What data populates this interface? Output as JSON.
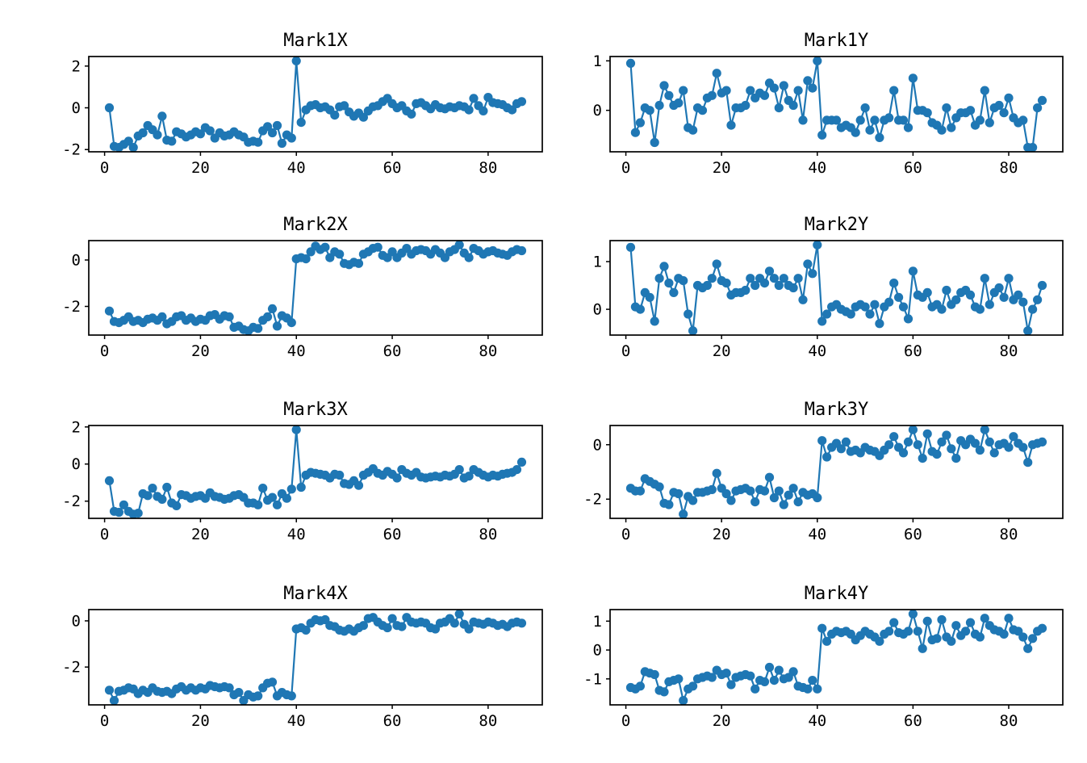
{
  "colors": {
    "line": "#1f77b4",
    "axis": "#000000",
    "background": "#ffffff",
    "tick_label": "#000000"
  },
  "chart_data": [
    {
      "type": "line",
      "title": "Mark1X",
      "x_start": 1,
      "x_step": 1,
      "xticks": [
        0,
        20,
        40,
        60,
        80
      ],
      "yticks": [
        -2,
        0,
        2
      ],
      "xlim": [
        -3.3,
        91.3
      ],
      "grid": false,
      "legend": null,
      "values": [
        0.0,
        -1.85,
        -1.9,
        -1.75,
        -1.6,
        -1.9,
        -1.35,
        -1.2,
        -0.85,
        -1.05,
        -1.3,
        -0.4,
        -1.55,
        -1.6,
        -1.15,
        -1.25,
        -1.4,
        -1.3,
        -1.15,
        -1.25,
        -0.95,
        -1.1,
        -1.45,
        -1.2,
        -1.35,
        -1.3,
        -1.15,
        -1.3,
        -1.4,
        -1.65,
        -1.6,
        -1.65,
        -1.1,
        -0.9,
        -1.2,
        -0.85,
        -1.7,
        -1.3,
        -1.45,
        2.25,
        -0.7,
        -0.1,
        0.1,
        0.15,
        0.0,
        0.05,
        -0.1,
        -0.35,
        0.05,
        0.1,
        -0.2,
        -0.4,
        -0.25,
        -0.45,
        -0.15,
        0.05,
        0.1,
        0.3,
        0.45,
        0.2,
        0.0,
        0.1,
        -0.15,
        -0.3,
        0.2,
        0.25,
        0.1,
        -0.05,
        0.15,
        0.0,
        -0.05,
        0.05,
        0.0,
        0.1,
        0.05,
        -0.1,
        0.45,
        0.1,
        -0.15,
        0.5,
        0.25,
        0.2,
        0.15,
        0.0,
        -0.1,
        0.2,
        0.3
      ]
    },
    {
      "type": "line",
      "title": "Mark1Y",
      "x_start": 1,
      "x_step": 1,
      "xticks": [
        0,
        20,
        40,
        60,
        80
      ],
      "yticks": [
        0,
        1
      ],
      "xlim": [
        -3.3,
        91.3
      ],
      "grid": false,
      "legend": null,
      "values": [
        0.95,
        -0.45,
        -0.25,
        0.05,
        0.0,
        -0.65,
        0.1,
        0.5,
        0.3,
        0.1,
        0.15,
        0.4,
        -0.35,
        -0.4,
        0.05,
        0.0,
        0.25,
        0.3,
        0.75,
        0.35,
        0.4,
        -0.3,
        0.05,
        0.05,
        0.1,
        0.4,
        0.25,
        0.35,
        0.3,
        0.55,
        0.45,
        0.05,
        0.5,
        0.2,
        0.1,
        0.4,
        -0.2,
        0.6,
        0.45,
        1.0,
        -0.5,
        -0.2,
        -0.2,
        -0.2,
        -0.35,
        -0.3,
        -0.35,
        -0.45,
        -0.2,
        0.05,
        -0.4,
        -0.2,
        -0.55,
        -0.2,
        -0.15,
        0.4,
        -0.2,
        -0.2,
        -0.35,
        0.65,
        0.0,
        0.0,
        -0.05,
        -0.25,
        -0.3,
        -0.4,
        0.05,
        -0.35,
        -0.15,
        -0.05,
        -0.05,
        0.0,
        -0.3,
        -0.2,
        0.4,
        -0.25,
        0.05,
        0.1,
        -0.05,
        0.25,
        -0.15,
        -0.25,
        -0.2,
        -0.75,
        -0.75,
        0.05,
        0.2
      ]
    },
    {
      "type": "line",
      "title": "Mark2X",
      "x_start": 1,
      "x_step": 1,
      "xticks": [
        0,
        20,
        40,
        60,
        80
      ],
      "yticks": [
        -2,
        0
      ],
      "xlim": [
        -3.3,
        91.3
      ],
      "grid": false,
      "legend": null,
      "values": [
        -2.2,
        -2.65,
        -2.7,
        -2.6,
        -2.45,
        -2.65,
        -2.6,
        -2.7,
        -2.55,
        -2.5,
        -2.6,
        -2.45,
        -2.75,
        -2.65,
        -2.45,
        -2.4,
        -2.6,
        -2.5,
        -2.65,
        -2.55,
        -2.6,
        -2.4,
        -2.35,
        -2.55,
        -2.4,
        -2.45,
        -2.9,
        -2.85,
        -3.0,
        -3.05,
        -2.9,
        -2.95,
        -2.6,
        -2.45,
        -2.1,
        -2.85,
        -2.4,
        -2.5,
        -2.7,
        0.05,
        0.1,
        0.05,
        0.35,
        0.6,
        0.45,
        0.55,
        0.1,
        0.35,
        0.25,
        -0.15,
        -0.2,
        -0.1,
        -0.15,
        0.25,
        0.35,
        0.5,
        0.55,
        0.2,
        0.1,
        0.35,
        0.1,
        0.3,
        0.5,
        0.25,
        0.4,
        0.45,
        0.4,
        0.25,
        0.45,
        0.3,
        0.1,
        0.35,
        0.45,
        0.65,
        0.3,
        0.1,
        0.5,
        0.4,
        0.25,
        0.35,
        0.4,
        0.3,
        0.25,
        0.2,
        0.35,
        0.45,
        0.4
      ]
    },
    {
      "type": "line",
      "title": "Mark2Y",
      "x_start": 1,
      "x_step": 1,
      "xticks": [
        0,
        20,
        40,
        60,
        80
      ],
      "yticks": [
        0,
        1
      ],
      "xlim": [
        -3.3,
        91.3
      ],
      "grid": false,
      "legend": null,
      "values": [
        1.3,
        0.05,
        0.0,
        0.35,
        0.25,
        -0.25,
        0.65,
        0.9,
        0.55,
        0.35,
        0.65,
        0.6,
        -0.1,
        -0.45,
        0.5,
        0.45,
        0.5,
        0.65,
        0.95,
        0.6,
        0.55,
        0.3,
        0.35,
        0.35,
        0.4,
        0.65,
        0.5,
        0.65,
        0.55,
        0.8,
        0.65,
        0.5,
        0.65,
        0.5,
        0.45,
        0.65,
        0.2,
        0.95,
        0.75,
        1.35,
        -0.25,
        -0.1,
        0.05,
        0.1,
        0.0,
        -0.05,
        -0.1,
        0.05,
        0.1,
        0.05,
        -0.1,
        0.1,
        -0.3,
        0.05,
        0.15,
        0.55,
        0.25,
        0.05,
        -0.2,
        0.8,
        0.3,
        0.25,
        0.35,
        0.05,
        0.1,
        0.0,
        0.4,
        0.1,
        0.2,
        0.35,
        0.4,
        0.3,
        0.05,
        0.0,
        0.65,
        0.1,
        0.35,
        0.45,
        0.25,
        0.65,
        0.2,
        0.3,
        0.15,
        -0.45,
        0.0,
        0.2,
        0.5
      ]
    },
    {
      "type": "line",
      "title": "Mark3X",
      "x_start": 1,
      "x_step": 1,
      "xticks": [
        0,
        20,
        40,
        60,
        80
      ],
      "yticks": [
        -2,
        0,
        2
      ],
      "xlim": [
        -3.3,
        91.3
      ],
      "grid": false,
      "legend": null,
      "values": [
        -0.9,
        -2.55,
        -2.6,
        -2.2,
        -2.55,
        -2.7,
        -2.65,
        -1.6,
        -1.7,
        -1.3,
        -1.75,
        -1.9,
        -1.25,
        -2.1,
        -2.25,
        -1.65,
        -1.7,
        -1.85,
        -1.75,
        -1.7,
        -1.85,
        -1.55,
        -1.75,
        -1.8,
        -1.9,
        -1.85,
        -1.7,
        -1.65,
        -1.8,
        -2.1,
        -2.1,
        -2.2,
        -1.3,
        -1.95,
        -1.8,
        -2.2,
        -1.6,
        -1.85,
        -1.35,
        1.85,
        -1.25,
        -0.6,
        -0.45,
        -0.5,
        -0.55,
        -0.6,
        -0.75,
        -0.55,
        -0.6,
        -1.05,
        -1.1,
        -0.9,
        -1.15,
        -0.6,
        -0.45,
        -0.25,
        -0.5,
        -0.6,
        -0.4,
        -0.55,
        -0.75,
        -0.3,
        -0.5,
        -0.6,
        -0.45,
        -0.7,
        -0.75,
        -0.7,
        -0.65,
        -0.7,
        -0.6,
        -0.65,
        -0.55,
        -0.3,
        -0.75,
        -0.65,
        -0.3,
        -0.45,
        -0.6,
        -0.7,
        -0.6,
        -0.65,
        -0.55,
        -0.5,
        -0.45,
        -0.3,
        0.1
      ]
    },
    {
      "type": "line",
      "title": "Mark3Y",
      "x_start": 1,
      "x_step": 1,
      "xticks": [
        0,
        20,
        40,
        60,
        80
      ],
      "yticks": [
        -2,
        0
      ],
      "xlim": [
        -3.3,
        91.3
      ],
      "grid": false,
      "legend": null,
      "values": [
        -1.6,
        -1.7,
        -1.7,
        -1.25,
        -1.35,
        -1.45,
        -1.55,
        -2.15,
        -2.2,
        -1.75,
        -1.8,
        -2.55,
        -1.9,
        -2.05,
        -1.75,
        -1.75,
        -1.7,
        -1.65,
        -1.05,
        -1.6,
        -1.8,
        -2.05,
        -1.7,
        -1.65,
        -1.6,
        -1.7,
        -2.1,
        -1.65,
        -1.7,
        -1.2,
        -1.95,
        -1.7,
        -2.2,
        -1.85,
        -1.6,
        -2.1,
        -1.75,
        -1.85,
        -1.8,
        -1.95,
        0.15,
        -0.45,
        -0.1,
        0.05,
        -0.15,
        0.1,
        -0.25,
        -0.2,
        -0.3,
        -0.1,
        -0.2,
        -0.25,
        -0.4,
        -0.2,
        0.0,
        0.3,
        -0.1,
        -0.3,
        0.1,
        0.55,
        0.0,
        -0.5,
        0.4,
        -0.25,
        -0.35,
        0.1,
        0.35,
        -0.15,
        -0.5,
        0.15,
        0.0,
        0.2,
        0.05,
        -0.2,
        0.55,
        0.1,
        -0.3,
        0.0,
        0.05,
        -0.1,
        0.3,
        0.05,
        -0.1,
        -0.65,
        0.0,
        0.05,
        0.1
      ]
    },
    {
      "type": "line",
      "title": "Mark4X",
      "x_start": 1,
      "x_step": 1,
      "xticks": [
        0,
        20,
        40,
        60,
        80
      ],
      "yticks": [
        -2,
        0
      ],
      "xlim": [
        -3.3,
        91.3
      ],
      "grid": false,
      "legend": null,
      "values": [
        -3.0,
        -3.45,
        -3.05,
        -3.0,
        -2.9,
        -2.95,
        -3.15,
        -3.0,
        -3.1,
        -2.9,
        -3.05,
        -3.1,
        -3.05,
        -3.15,
        -2.95,
        -2.85,
        -3.0,
        -2.9,
        -3.0,
        -2.9,
        -2.95,
        -2.8,
        -2.85,
        -2.9,
        -2.85,
        -2.9,
        -3.2,
        -3.1,
        -3.45,
        -3.2,
        -3.3,
        -3.25,
        -2.9,
        -2.7,
        -2.65,
        -3.25,
        -3.1,
        -3.2,
        -3.25,
        -0.35,
        -0.3,
        -0.4,
        -0.1,
        0.05,
        0.0,
        0.05,
        -0.2,
        -0.25,
        -0.4,
        -0.45,
        -0.35,
        -0.45,
        -0.3,
        -0.2,
        0.1,
        0.15,
        -0.05,
        -0.2,
        -0.3,
        0.1,
        -0.2,
        -0.25,
        0.15,
        -0.05,
        -0.1,
        -0.05,
        -0.1,
        -0.3,
        -0.35,
        -0.1,
        -0.05,
        0.1,
        -0.1,
        0.3,
        -0.15,
        -0.35,
        -0.05,
        -0.1,
        -0.15,
        -0.05,
        -0.1,
        -0.2,
        -0.15,
        -0.25,
        -0.1,
        -0.05,
        -0.1
      ]
    },
    {
      "type": "line",
      "title": "Mark4Y",
      "x_start": 1,
      "x_step": 1,
      "xticks": [
        0,
        20,
        40,
        60,
        80
      ],
      "yticks": [
        -1,
        0,
        1
      ],
      "xlim": [
        -3.3,
        91.3
      ],
      "grid": false,
      "legend": null,
      "values": [
        -1.3,
        -1.35,
        -1.25,
        -0.75,
        -0.8,
        -0.85,
        -1.4,
        -1.45,
        -1.1,
        -1.05,
        -1.0,
        -1.75,
        -1.35,
        -1.25,
        -1.0,
        -0.95,
        -0.9,
        -0.95,
        -0.7,
        -0.85,
        -0.8,
        -1.2,
        -0.95,
        -0.9,
        -0.85,
        -0.9,
        -1.35,
        -1.05,
        -1.1,
        -0.6,
        -1.05,
        -0.7,
        -1.0,
        -0.95,
        -0.75,
        -1.25,
        -1.3,
        -1.35,
        -1.05,
        -1.35,
        0.75,
        0.3,
        0.55,
        0.65,
        0.6,
        0.65,
        0.55,
        0.35,
        0.5,
        0.65,
        0.55,
        0.45,
        0.3,
        0.55,
        0.65,
        0.95,
        0.6,
        0.55,
        0.65,
        1.25,
        0.65,
        0.05,
        1.0,
        0.35,
        0.4,
        1.05,
        0.45,
        0.3,
        0.85,
        0.5,
        0.65,
        0.95,
        0.55,
        0.45,
        1.1,
        0.85,
        0.7,
        0.65,
        0.55,
        1.1,
        0.7,
        0.65,
        0.45,
        0.05,
        0.4,
        0.65,
        0.75
      ]
    }
  ]
}
